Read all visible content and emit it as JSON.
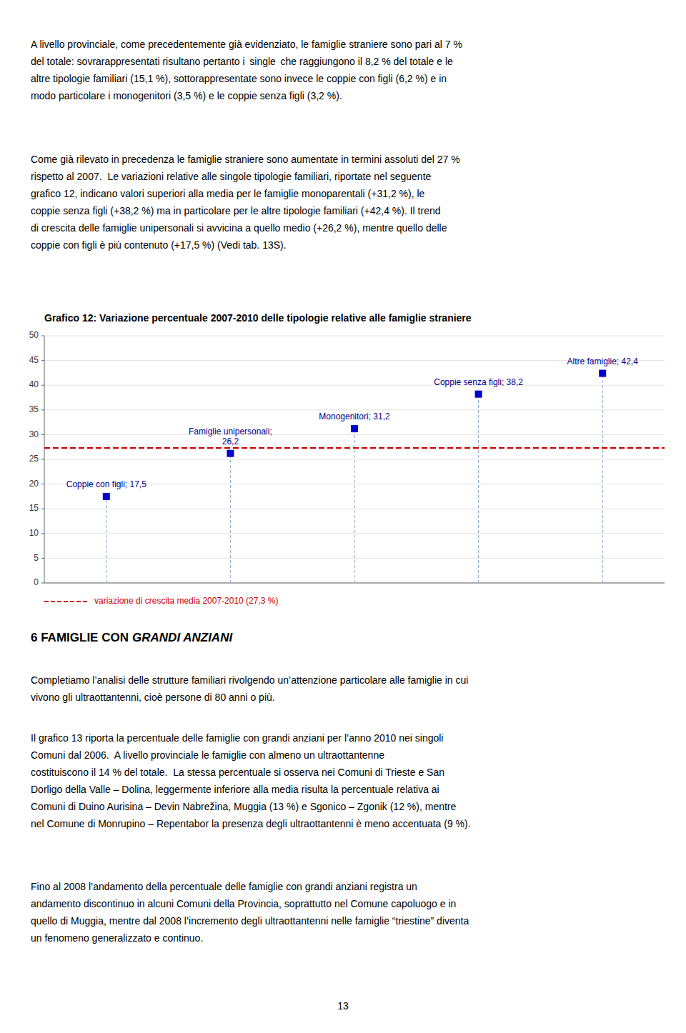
{
  "chart_data": {
    "type": "scatter",
    "title": "Grafico 12: Variazione percentuale 2007-2010 delle tipologie relative alle famiglie straniere",
    "categories": [
      "Coppie con figli",
      "Famiglie unipersonali",
      "Monogenitori",
      "Coppie senza figli",
      "Altre famiglie"
    ],
    "values": [
      17.5,
      26.2,
      31.2,
      38.2,
      42.4
    ],
    "value_labels": [
      "Coppie con figli; 17,5",
      "Famiglie unipersonali;\n26,2",
      "Monogenitori; 31,2",
      "Coppie senza figli; 38,2",
      "Altre famiglie; 42,4"
    ],
    "data_labels": true,
    "color": "#0000cc",
    "marker": "square",
    "ylim": [
      0,
      50
    ],
    "yticks": [
      0,
      5,
      10,
      15,
      20,
      25,
      30,
      35,
      40,
      45,
      50
    ],
    "grid": true,
    "tick_labels": "y",
    "legend": "bottom",
    "reference_line": {
      "name": "variazione di crescita media 2007-2010 (27,3 %)",
      "value": 27.3,
      "color": "#cc0000",
      "line_style": "dashed"
    }
  },
  "paragraphs": [
    "A livello provinciale, come precedentemente già evidenziato, le famiglie straniere sono pari al 7 %\ndel totale: sovrarappresentati risultano pertanto i  single  che raggiungono il 8,2 % del totale e le\naltre tipologie familiari (15,1 %), sottorappresentate sono invece le coppie con figli (6,2 %) e in\nmodo particolare i monogenitori (3,5 %) e le coppie senza figli (3,2 %).",
    "Come già rilevato in precedenza le famiglie straniere sono aumentate in termini assoluti del 27 %\nrispetto al 2007.  Le variazioni relative alle singole tipologie familiari, riportate nel seguente\ngrafico 12, indicano valori superiori alla media per le famiglie monoparentali (+31,2 %), le\ncoppie senza figli (+38,2 %) ma in particolare per le altre tipologie familiari (+42,4 %). Il trend\ndi crescita delle famiglie unipersonali si avvicina a quello medio (+26,2 %), mentre quello delle\ncoppie con figli è più contenuto (+17,5 %) (Vedi tab. 13S).",
    "Completiamo l’analisi delle strutture familiari rivolgendo un’attenzione particolare alle famiglie in cui\nvivono gli ultraottantenni, cioè persone di 80 anni o più.",
    "Il grafico 13 riporta la percentuale delle famiglie con grandi anziani per l’anno 2010 nei singoli\nComuni dal 2006.  A livello provinciale le famiglie con almeno un ultraottantenne\ncostituiscono il 14 % del totale.  La stessa percentuale si osserva nei Comuni di Trieste e San\nDorligo della Valle – Dolina, leggermente inferiore alla media risulta la percentuale relativa ai\nComuni di Duino Aurisina – Devin Nabrežina, Muggia (13 %) e Sgonico – Zgonik (12 %), mentre\nnel Comune di Monrupino – Repentabor la presenza degli ultraottantenni è meno accentuata (9 %).",
    "Fino al 2008 l’andamento della percentuale delle famiglie con grandi anziani registra un\nandamento discontinuo in alcuni Comuni della Provincia, soprattutto nel Comune capoluogo e in\nquello di Muggia, mentre dal 2008 l’incremento degli ultraottantenni nelle famiglie “triestine” diventa\nun fenomeno generalizzato e continuo."
  ],
  "heading": {
    "plain": "6 FAMIGLIE CON",
    "italic": "GRANDI ANZIANI"
  },
  "page_number": "13"
}
